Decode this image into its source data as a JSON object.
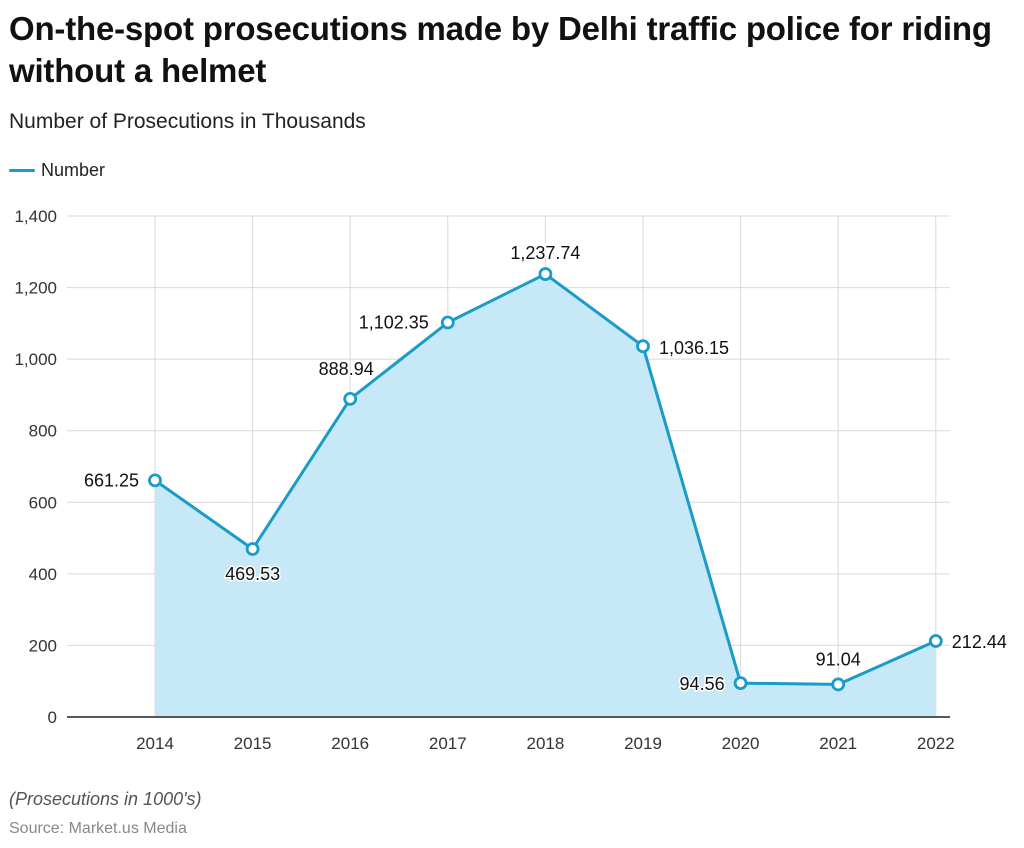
{
  "header": {
    "title": "On-the-spot prosecutions made by Delhi traffic police for riding without a helmet",
    "subtitle": "Number of Prosecutions in Thousands"
  },
  "legend": {
    "label": "Number"
  },
  "footer": {
    "note": "(Prosecutions in 1000's)",
    "source": "Source: Market.us Media"
  },
  "colors": {
    "line": "#1a9bc8",
    "fill": "#c7e9f7",
    "grid": "#d9d9d9",
    "axis": "#222222"
  },
  "chart_data": {
    "type": "area",
    "title": "On-the-spot prosecutions made by Delhi traffic police for riding without a helmet",
    "subtitle": "Number of Prosecutions in Thousands",
    "xlabel": "",
    "ylabel": "",
    "categories": [
      "2014",
      "2015",
      "2016",
      "2017",
      "2018",
      "2019",
      "2020",
      "2021",
      "2022"
    ],
    "series": [
      {
        "name": "Number",
        "values": [
          661.25,
          469.53,
          888.94,
          1102.35,
          1237.74,
          1036.15,
          94.56,
          91.04,
          212.44
        ],
        "labels": [
          "661.25",
          "469.53",
          "888.94",
          "1,102.35",
          "1,237.74",
          "1,036.15",
          "94.56",
          "91.04",
          "212.44"
        ]
      }
    ],
    "ylim": [
      0,
      1400
    ],
    "yticks": [
      0,
      200,
      400,
      600,
      800,
      1000,
      1200,
      1400
    ],
    "ytick_labels": [
      "0",
      "200",
      "400",
      "600",
      "800",
      "1,000",
      "1,200",
      "1,400"
    ],
    "grid": true,
    "legend_position": "top-left"
  }
}
